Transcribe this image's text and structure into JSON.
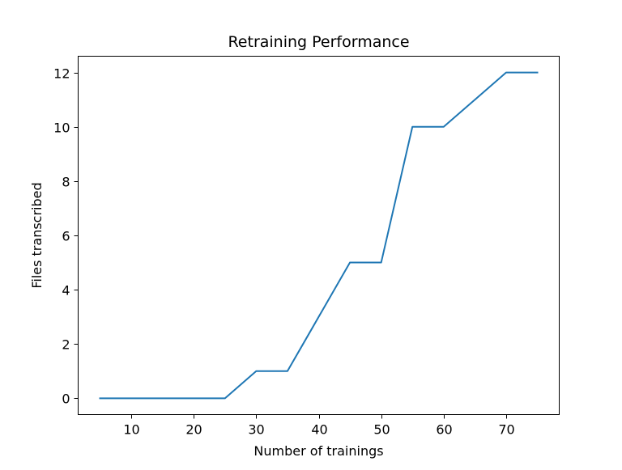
{
  "chart_data": {
    "type": "line",
    "title": "Retraining Performance",
    "xlabel": "Number of trainings",
    "ylabel": "Files transcribed",
    "xlim": [
      1.5,
      78.5
    ],
    "ylim": [
      -0.6,
      12.6
    ],
    "xticks": [
      10,
      20,
      30,
      40,
      50,
      60,
      70
    ],
    "yticks": [
      0,
      2,
      4,
      6,
      8,
      10,
      12
    ],
    "grid": false,
    "legend": "none",
    "series": [
      {
        "color": "#1f77b4",
        "x": [
          5,
          10,
          15,
          20,
          25,
          30,
          35,
          40,
          45,
          50,
          55,
          60,
          65,
          70,
          75
        ],
        "y": [
          0,
          0,
          0,
          0,
          0,
          1,
          1,
          3,
          5,
          5,
          10,
          10,
          11,
          12,
          12
        ]
      }
    ]
  }
}
